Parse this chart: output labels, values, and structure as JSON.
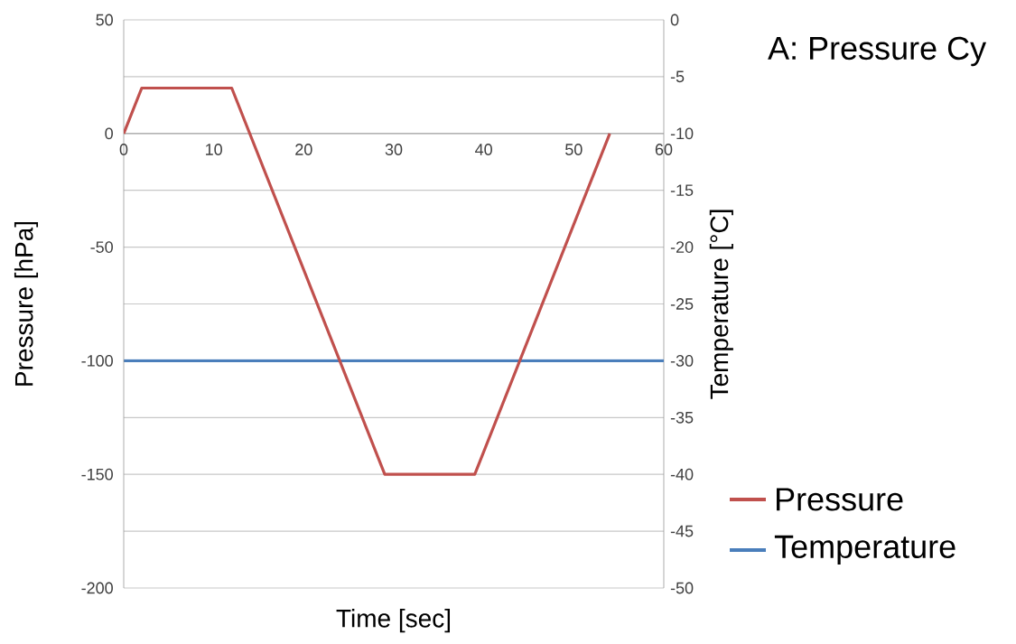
{
  "chart_data": {
    "type": "line",
    "title": "A: Pressure Cy",
    "xlabel": "Time [sec]",
    "ylabel": "Pressure [hPa]",
    "y2label": "Temperature [°C]",
    "series": [
      {
        "name": "Pressure",
        "color": "#c0504d",
        "x": [
          0,
          2,
          12,
          29,
          39,
          54
        ],
        "values": [
          0,
          20,
          20,
          -150,
          -150,
          0
        ]
      },
      {
        "name": "Temperature",
        "color": "#4a7ebb",
        "x": [
          0,
          60
        ],
        "values": [
          -30,
          -30
        ],
        "axis": "y2"
      }
    ],
    "xlim": [
      0,
      60
    ],
    "xticks": [
      0,
      10,
      20,
      30,
      40,
      50,
      60
    ],
    "ylim": [
      -200,
      50
    ],
    "yticks": [
      -200,
      -150,
      -100,
      -50,
      0,
      50
    ],
    "y2lim": [
      -50,
      0
    ],
    "y2ticks": [
      -50,
      -45,
      -40,
      -35,
      -30,
      -25,
      -20,
      -15,
      -10,
      -5,
      0
    ],
    "grid": true,
    "legend": "right",
    "marker": "none",
    "line_style": "solid"
  }
}
